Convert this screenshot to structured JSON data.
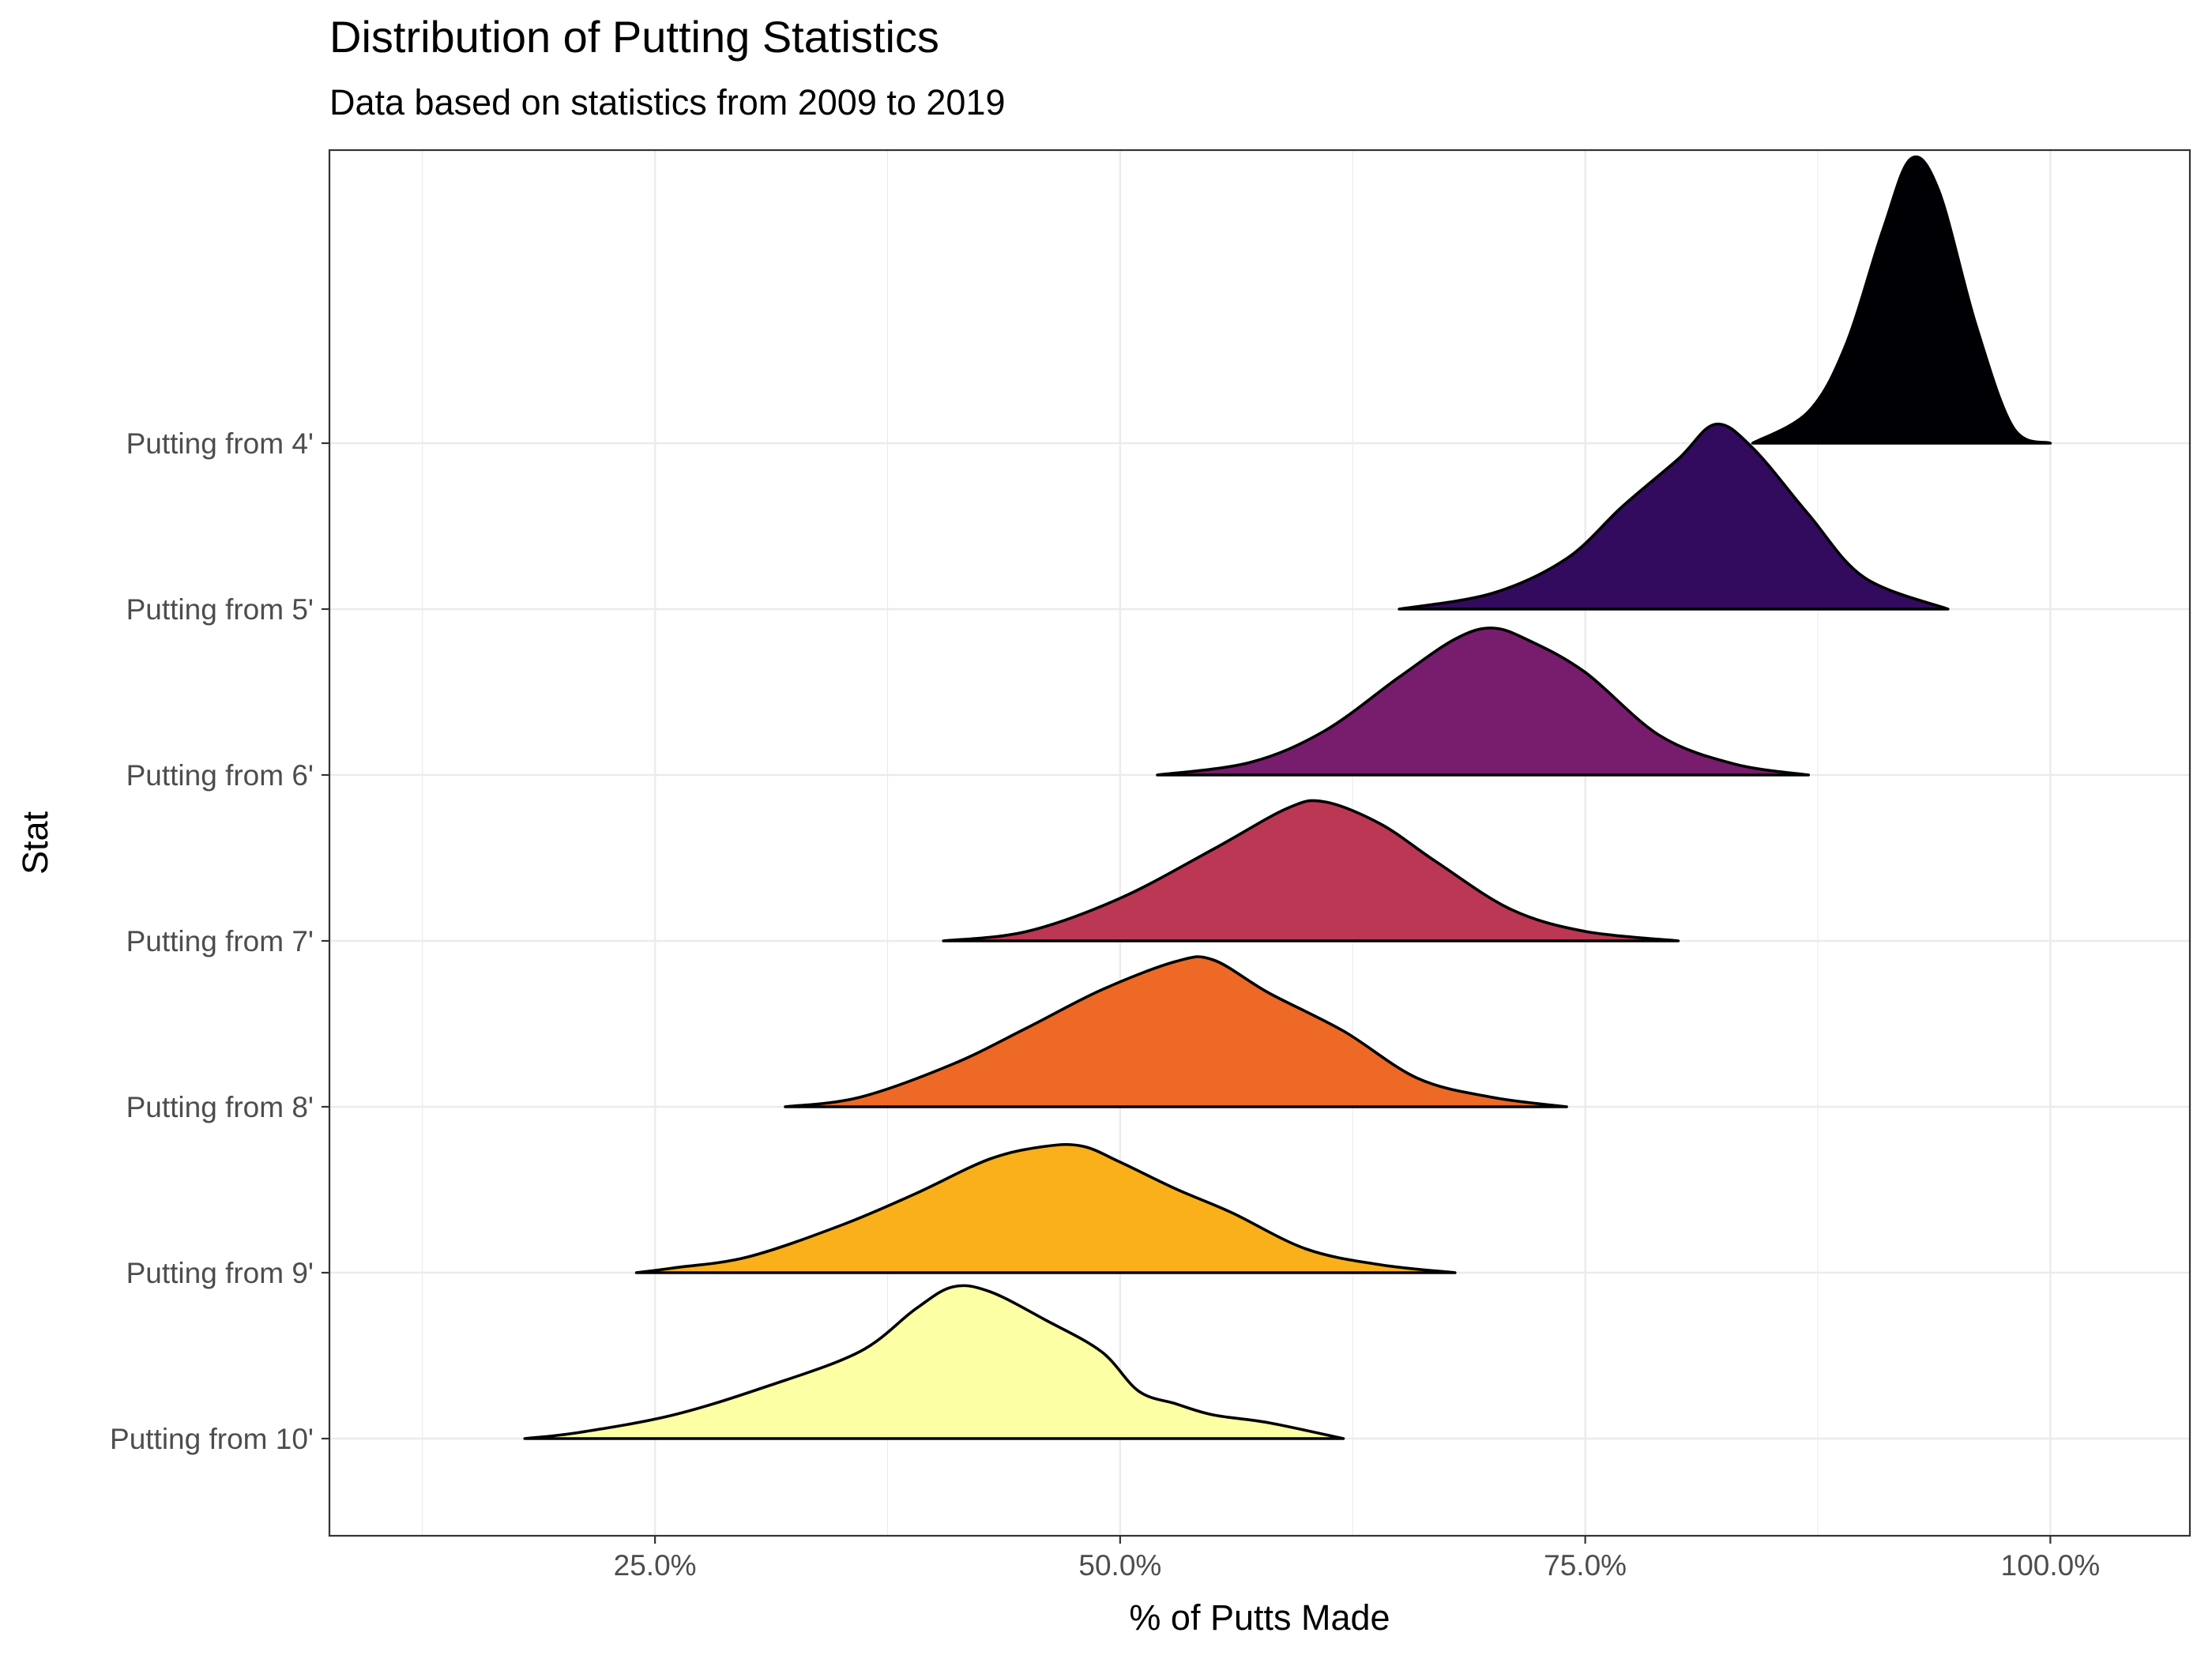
{
  "chart_data": {
    "type": "ridgeline",
    "title": "Distribution of Putting Statistics",
    "subtitle": "Data based on statistics from 2009 to 2019",
    "xlabel": "% of Putts Made",
    "ylabel": "Stat",
    "xlim": [
      0.075,
      1.075
    ],
    "x_ticks": [
      0.25,
      0.5,
      0.75,
      1.0
    ],
    "x_tick_labels": [
      "25.0%",
      "50.0%",
      "75.0%",
      "100.0%"
    ],
    "categories": [
      "Putting from 10'",
      "Putting from 9'",
      "Putting from 8'",
      "Putting from 7'",
      "Putting from 6'",
      "Putting from 5'",
      "Putting from 4'"
    ],
    "grid": true,
    "series": [
      {
        "name": "Putting from 10'",
        "color": "#FCFFA4",
        "x": [
          0.18,
          0.21,
          0.26,
          0.31,
          0.36,
          0.39,
          0.41,
          0.43,
          0.46,
          0.49,
          0.51,
          0.53,
          0.55,
          0.58,
          0.62
        ],
        "density": [
          0.0,
          0.04,
          0.15,
          0.33,
          0.55,
          0.82,
          0.96,
          0.93,
          0.75,
          0.55,
          0.3,
          0.22,
          0.15,
          0.1,
          0.0
        ]
      },
      {
        "name": "Putting from 9'",
        "color": "#FAB01A",
        "x": [
          0.24,
          0.26,
          0.3,
          0.35,
          0.39,
          0.43,
          0.46,
          0.48,
          0.5,
          0.53,
          0.56,
          0.6,
          0.64,
          0.68
        ],
        "density": [
          0.0,
          0.03,
          0.1,
          0.3,
          0.5,
          0.72,
          0.8,
          0.8,
          0.7,
          0.53,
          0.38,
          0.15,
          0.05,
          0.0
        ]
      },
      {
        "name": "Putting from 8'",
        "color": "#ED6925",
        "x": [
          0.32,
          0.36,
          0.41,
          0.45,
          0.49,
          0.53,
          0.55,
          0.58,
          0.62,
          0.66,
          0.7,
          0.74
        ],
        "density": [
          0.0,
          0.06,
          0.27,
          0.5,
          0.74,
          0.92,
          0.93,
          0.72,
          0.48,
          0.18,
          0.06,
          0.0
        ]
      },
      {
        "name": "Putting from 7'",
        "color": "#BB3754",
        "x": [
          0.405,
          0.45,
          0.5,
          0.55,
          0.59,
          0.61,
          0.64,
          0.67,
          0.71,
          0.75,
          0.8
        ],
        "density": [
          0.0,
          0.06,
          0.27,
          0.58,
          0.84,
          0.88,
          0.74,
          0.5,
          0.2,
          0.06,
          0.0
        ]
      },
      {
        "name": "Putting from 6'",
        "color": "#781C6D",
        "x": [
          0.52,
          0.57,
          0.61,
          0.65,
          0.68,
          0.7,
          0.72,
          0.75,
          0.79,
          0.83,
          0.87
        ],
        "density": [
          0.0,
          0.08,
          0.28,
          0.62,
          0.86,
          0.93,
          0.85,
          0.65,
          0.25,
          0.07,
          0.0
        ]
      },
      {
        "name": "Putting from 5'",
        "color": "#320A5E",
        "x": [
          0.65,
          0.7,
          0.74,
          0.77,
          0.8,
          0.82,
          0.84,
          0.87,
          0.9,
          0.945
        ],
        "density": [
          0.0,
          0.1,
          0.32,
          0.65,
          0.95,
          1.17,
          1.02,
          0.6,
          0.2,
          0.0
        ]
      },
      {
        "name": "Putting from 4'",
        "color": "#000004",
        "x": [
          0.84,
          0.87,
          0.89,
          0.91,
          0.925,
          0.94,
          0.96,
          0.98,
          1.0
        ],
        "density": [
          0.0,
          0.2,
          0.62,
          1.35,
          1.8,
          1.6,
          0.75,
          0.1,
          0.0
        ]
      }
    ]
  }
}
